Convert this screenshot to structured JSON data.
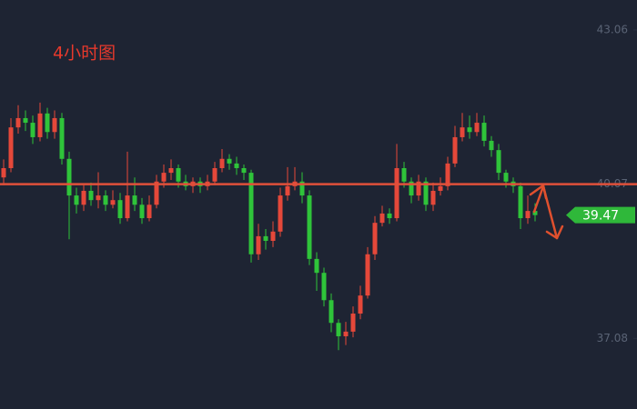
{
  "chart_data": {
    "type": "candlestick",
    "title": "4小时图",
    "up_color": "#e5483a",
    "down_color": "#2fc43a",
    "level_line": 40.07,
    "level_color": "#e0503a",
    "ylim": [
      35.71,
      43.64
    ],
    "yticks": [
      43.06,
      40.07,
      37.08
    ],
    "open": [
      40.2,
      40.38,
      41.17,
      41.35,
      41.26,
      40.98,
      41.44,
      41.08,
      41.35,
      40.56,
      39.85,
      39.67,
      39.94,
      39.76,
      39.85,
      39.67,
      39.76,
      39.41,
      39.85,
      39.67,
      39.41,
      39.67,
      40.12,
      40.29,
      40.38,
      40.12,
      40.03,
      40.12,
      40.03,
      40.12,
      40.38,
      40.56,
      40.47,
      40.38,
      40.29,
      38.71,
      39.06,
      38.97,
      39.15,
      39.85,
      40.03,
      40.12,
      39.85,
      38.62,
      38.35,
      37.82,
      37.38,
      37.12,
      37.21,
      37.56,
      37.91,
      38.71,
      39.32,
      39.5,
      39.41,
      40.38,
      40.12,
      39.85,
      40.12,
      39.67,
      39.94,
      40.03,
      40.47,
      40.98,
      41.17,
      41.08,
      41.26,
      40.91,
      40.73,
      40.29,
      40.12,
      40.03,
      39.41,
      39.55
    ],
    "high": [
      40.55,
      41.35,
      41.6,
      41.5,
      41.4,
      41.65,
      41.55,
      41.5,
      41.45,
      40.7,
      40.0,
      40.05,
      40.1,
      40.3,
      39.95,
      39.95,
      39.9,
      40.7,
      40.2,
      39.8,
      39.85,
      40.25,
      40.45,
      40.55,
      40.45,
      40.25,
      40.2,
      40.2,
      40.25,
      40.5,
      40.75,
      40.65,
      40.6,
      40.45,
      40.35,
      39.3,
      39.2,
      39.35,
      40.0,
      40.4,
      40.4,
      40.3,
      39.95,
      38.75,
      38.45,
      37.95,
      37.45,
      37.4,
      37.7,
      38.1,
      38.85,
      39.45,
      39.65,
      39.6,
      40.85,
      40.5,
      40.2,
      40.25,
      40.2,
      40.1,
      40.2,
      40.6,
      41.2,
      41.45,
      41.4,
      41.45,
      41.4,
      41.0,
      40.85,
      40.35,
      40.2,
      40.1,
      39.85,
      39.7
    ],
    "low": [
      40.05,
      40.3,
      41.05,
      41.1,
      40.85,
      40.9,
      40.95,
      40.95,
      40.45,
      39.0,
      39.5,
      39.55,
      39.65,
      39.6,
      39.55,
      39.6,
      39.3,
      39.35,
      39.55,
      39.3,
      39.35,
      39.6,
      40.0,
      40.15,
      40.0,
      39.95,
      39.9,
      39.9,
      39.95,
      40.05,
      40.3,
      40.35,
      40.25,
      40.15,
      38.55,
      38.6,
      38.8,
      38.85,
      39.05,
      39.75,
      39.95,
      39.7,
      38.5,
      38.0,
      37.7,
      37.2,
      36.85,
      36.95,
      37.1,
      37.45,
      37.85,
      38.6,
      39.25,
      39.3,
      39.35,
      40.0,
      39.7,
      39.75,
      39.55,
      39.55,
      39.85,
      39.95,
      40.4,
      40.9,
      40.95,
      41.0,
      40.8,
      40.6,
      40.15,
      40.0,
      39.9,
      39.2,
      39.3,
      39.35
    ],
    "close": [
      40.38,
      41.17,
      41.35,
      41.26,
      40.98,
      41.44,
      41.08,
      41.35,
      40.56,
      39.85,
      39.67,
      39.94,
      39.76,
      39.85,
      39.67,
      39.76,
      39.41,
      39.85,
      39.67,
      39.41,
      39.67,
      40.12,
      40.29,
      40.38,
      40.12,
      40.03,
      40.12,
      40.03,
      40.12,
      40.38,
      40.56,
      40.47,
      40.38,
      40.29,
      38.71,
      39.06,
      38.97,
      39.15,
      39.85,
      40.03,
      40.12,
      39.85,
      38.62,
      38.35,
      37.82,
      37.38,
      37.12,
      37.21,
      37.56,
      37.91,
      38.71,
      39.32,
      39.5,
      39.41,
      40.38,
      40.12,
      39.85,
      40.12,
      39.67,
      39.94,
      40.03,
      40.47,
      40.98,
      41.17,
      41.08,
      41.26,
      40.91,
      40.73,
      40.29,
      40.12,
      40.03,
      39.41,
      39.55,
      39.47
    ]
  }
}
